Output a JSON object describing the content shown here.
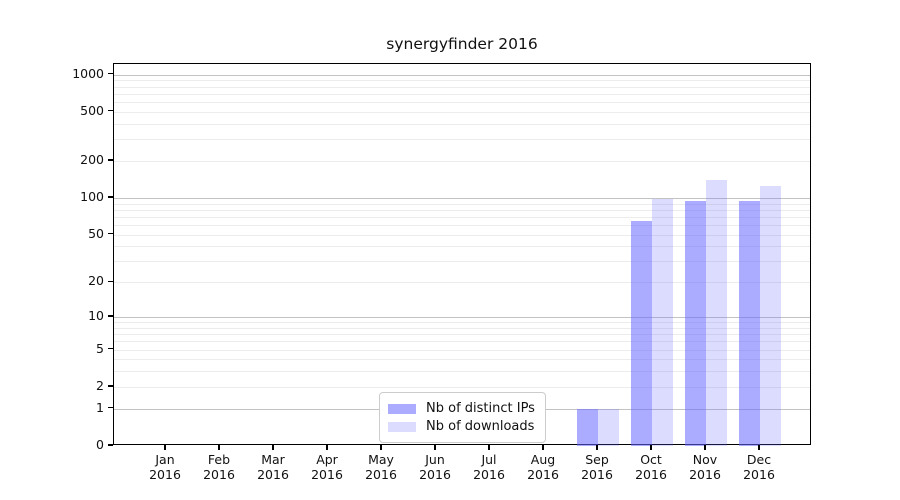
{
  "title": "synergyfinder 2016",
  "chart_data": {
    "type": "bar",
    "title": "synergyfinder 2016",
    "categories": [
      "Jan 2016",
      "Feb 2016",
      "Mar 2016",
      "Apr 2016",
      "May 2016",
      "Jun 2016",
      "Jul 2016",
      "Aug 2016",
      "Sep 2016",
      "Oct 2016",
      "Nov 2016",
      "Dec 2016"
    ],
    "series": [
      {
        "name": "Nb of distinct IPs",
        "color": "rgba(102,102,255,0.55)",
        "values": [
          0,
          0,
          0,
          0,
          0,
          0,
          0,
          0,
          1,
          65,
          94,
          95
        ]
      },
      {
        "name": "Nb of downloads",
        "color": "rgba(102,102,255,0.23)",
        "values": [
          0,
          0,
          0,
          0,
          0,
          0,
          0,
          0,
          1,
          98,
          140,
          125
        ]
      }
    ],
    "xlabel": "",
    "ylabel": "",
    "yscale": "log1p",
    "yticks": [
      0,
      1,
      2,
      5,
      10,
      20,
      50,
      100,
      200,
      500,
      1000
    ],
    "ylim": [
      0,
      1218
    ],
    "grid": "horizontal",
    "legend_position": "lower-center"
  },
  "style": {
    "grid_major_color": "#c3c3c3",
    "grid_minor_color": "#ececec",
    "axis_color": "#000000",
    "background": "#ffffff"
  }
}
